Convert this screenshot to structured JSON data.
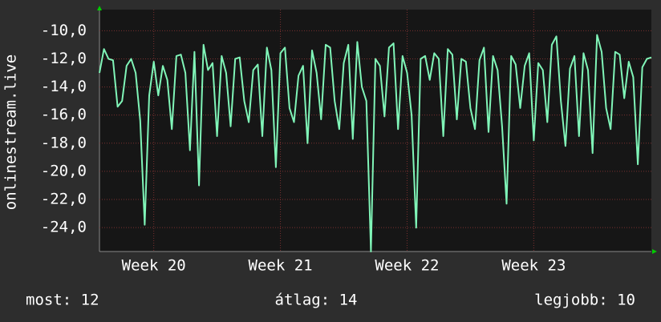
{
  "chart_data": {
    "type": "line",
    "y_label": "onlinestream.live",
    "values": [
      -13,
      -11.3,
      -12,
      -12.1,
      -15.4,
      -15,
      -12.5,
      -12,
      -13,
      -16.4,
      -23.8,
      -14.6,
      -12.2,
      -14.6,
      -12.5,
      -13.5,
      -17,
      -11.8,
      -11.7,
      -13,
      -18.5,
      -11.5,
      -21,
      -11,
      -12.8,
      -12.3,
      -17.5,
      -11.8,
      -13,
      -16.8,
      -12,
      -11.9,
      -15,
      -16.5,
      -12.8,
      -12.4,
      -17.5,
      -11.2,
      -12.8,
      -19.7,
      -11.6,
      -11.2,
      -15.5,
      -16.5,
      -13.2,
      -12.5,
      -18,
      -11.4,
      -13,
      -16.3,
      -11,
      -11.2,
      -15,
      -17,
      -12.3,
      -11,
      -17.7,
      -10.8,
      -14,
      -15,
      -25.7,
      -12,
      -12.5,
      -16.1,
      -11.2,
      -10.9,
      -17,
      -11.8,
      -13,
      -16,
      -24,
      -12,
      -11.8,
      -13.5,
      -11.6,
      -12,
      -17.5,
      -11.3,
      -11.7,
      -16.3,
      -12,
      -12.2,
      -15.5,
      -17,
      -12.1,
      -11.2,
      -17.2,
      -11.8,
      -12.8,
      -16.8,
      -22.3,
      -11.8,
      -12.4,
      -15.5,
      -12.5,
      -11.6,
      -17.8,
      -12.3,
      -12.8,
      -16.5,
      -11,
      -10.4,
      -15,
      -18.2,
      -12.7,
      -11.8,
      -17.5,
      -11.6,
      -12.8,
      -18.7,
      -10.3,
      -11.5,
      -15.5,
      -17,
      -11.5,
      -11.7,
      -14.8,
      -12.2,
      -13.3,
      -19.5,
      -12.6,
      -12,
      -11.9
    ],
    "color": "#80f5b8",
    "xlim": [
      0,
      122
    ],
    "xticks": [
      {
        "value": 12,
        "label": "Week 20"
      },
      {
        "value": 40,
        "label": "Week 21"
      },
      {
        "value": 68,
        "label": "Week 22"
      },
      {
        "value": 96,
        "label": "Week 23"
      }
    ],
    "ylim": [
      -25.7,
      -8.5
    ],
    "yticks": [
      {
        "value": -10,
        "label": "-10,0"
      },
      {
        "value": -12,
        "label": "-12,0"
      },
      {
        "value": -14,
        "label": "-14,0"
      },
      {
        "value": -16,
        "label": "-16,0"
      },
      {
        "value": -18,
        "label": "-18,0"
      },
      {
        "value": -20,
        "label": "-20,0"
      },
      {
        "value": -22,
        "label": "-22,0"
      },
      {
        "value": -24,
        "label": "-24,0"
      }
    ],
    "grid": true,
    "footer": [
      "most: 12",
      "átlag: 14",
      "legjobb: 10"
    ]
  }
}
